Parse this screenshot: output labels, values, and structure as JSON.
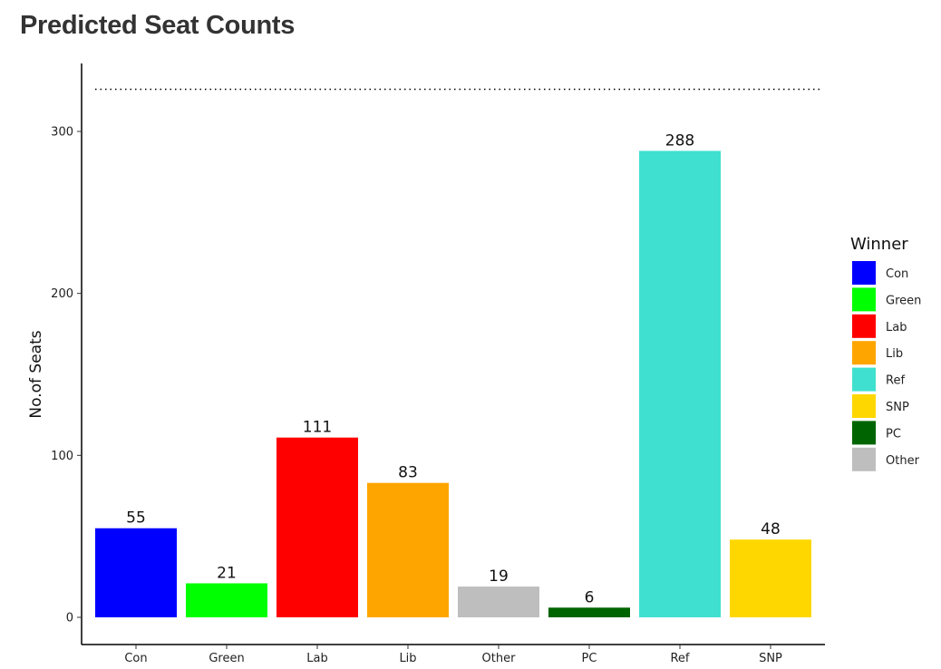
{
  "chart_data": {
    "type": "bar",
    "title": "Predicted Seat Counts",
    "xlabel": "",
    "ylabel": "No.of Seats",
    "ylim": [
      0,
      340
    ],
    "yticks": [
      0,
      100,
      200,
      300
    ],
    "reference_line": 326,
    "categories": [
      "Con",
      "Green",
      "Lab",
      "Lib",
      "Other",
      "PC",
      "Ref",
      "SNP"
    ],
    "values": [
      55,
      21,
      111,
      83,
      19,
      6,
      288,
      48
    ],
    "bar_colors": [
      "#0000ff",
      "#00ff00",
      "#ff0000",
      "#ffa500",
      "#bebebe",
      "#006400",
      "#40e0d0",
      "#ffd700"
    ],
    "grid": false,
    "legend": {
      "title": "Winner",
      "position": "right",
      "entries": [
        {
          "label": "Con",
          "color": "#0000ff"
        },
        {
          "label": "Green",
          "color": "#00ff00"
        },
        {
          "label": "Lab",
          "color": "#ff0000"
        },
        {
          "label": "Lib",
          "color": "#ffa500"
        },
        {
          "label": "Ref",
          "color": "#40e0d0"
        },
        {
          "label": "SNP",
          "color": "#ffd700"
        },
        {
          "label": "PC",
          "color": "#006400"
        },
        {
          "label": "Other",
          "color": "#bebebe"
        }
      ]
    }
  }
}
